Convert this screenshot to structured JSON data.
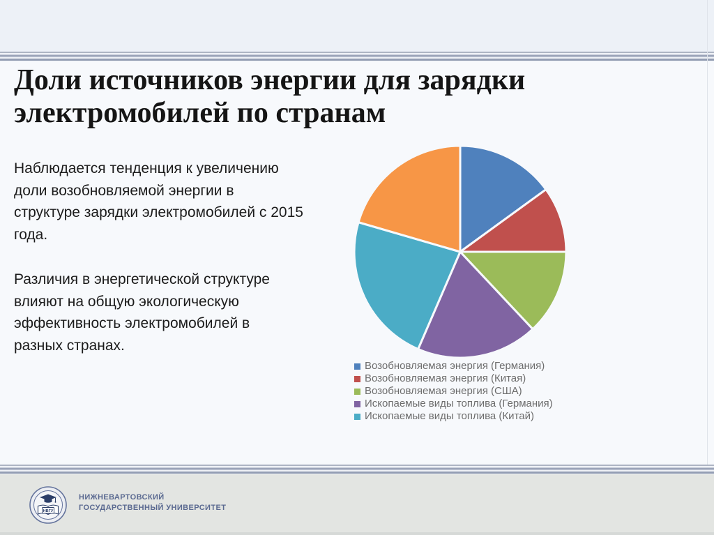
{
  "slide": {
    "title_lines": [
      "Доли источников энергии для зарядки",
      "электромобилей по странам"
    ],
    "paragraphs": [
      [
        "Наблюдается тенденция к увеличению",
        "доли возобновляемой энергии в",
        "структуре зарядки электромобилей с 2015",
        "года."
      ],
      [
        "Различия в энергетической структуре",
        "влияют на общую экологическую",
        "эффективность электромобилей в",
        "разных странах."
      ]
    ]
  },
  "chart_data": {
    "type": "pie",
    "title": "",
    "start_angle_deg": 0,
    "direction": "clockwise",
    "legend_position": "bottom-left",
    "slices": [
      {
        "label": "Возобновляемая энергия (Германия)",
        "percent": 15,
        "color": "#4F81BD"
      },
      {
        "label": "Возобновляемая энергия (Китая)",
        "percent": 10,
        "color": "#C0504D"
      },
      {
        "label": "Возобновляемая энергия (США)",
        "percent": 13,
        "color": "#9BBB59"
      },
      {
        "label": "Ископаемые виды топлива (Германия)",
        "percent": 18.5,
        "color": "#8064A2"
      },
      {
        "label": "Ископаемые виды топлива (Китай)",
        "percent": 23,
        "color": "#4BACC6"
      },
      {
        "label": "",
        "percent": 20.5,
        "color": "#F79646"
      }
    ],
    "legend_items": [
      {
        "label": "Возобновляемая энергия (Германия)",
        "color": "#4F81BD"
      },
      {
        "label": "Возобновляемая энергия (Китая)",
        "color": "#C0504D"
      },
      {
        "label": "Возобновляемая энергия (США)",
        "color": "#9BBB59"
      },
      {
        "label": "Ископаемые виды топлива (Германия)",
        "color": "#8064A2"
      },
      {
        "label": "Ископаемые виды топлива (Китай)",
        "color": "#4BACC6"
      }
    ]
  },
  "footer": {
    "logo_abbr": "НВГУ",
    "university_name_lines": [
      "НИЖНЕВАРТОВСКИЙ",
      "ГОСУДАРСТВЕННЫЙ УНИВЕРСИТЕТ"
    ]
  },
  "colors": {
    "title_text": "#151515",
    "body_text": "#1c1c1c",
    "legend_text": "#6d6d6d",
    "divider_stripe": "#9aa3b8",
    "footer_bg": "#e3e5e2",
    "footer_text": "#5b6a91",
    "slide_bg": "#f7f9fc"
  }
}
